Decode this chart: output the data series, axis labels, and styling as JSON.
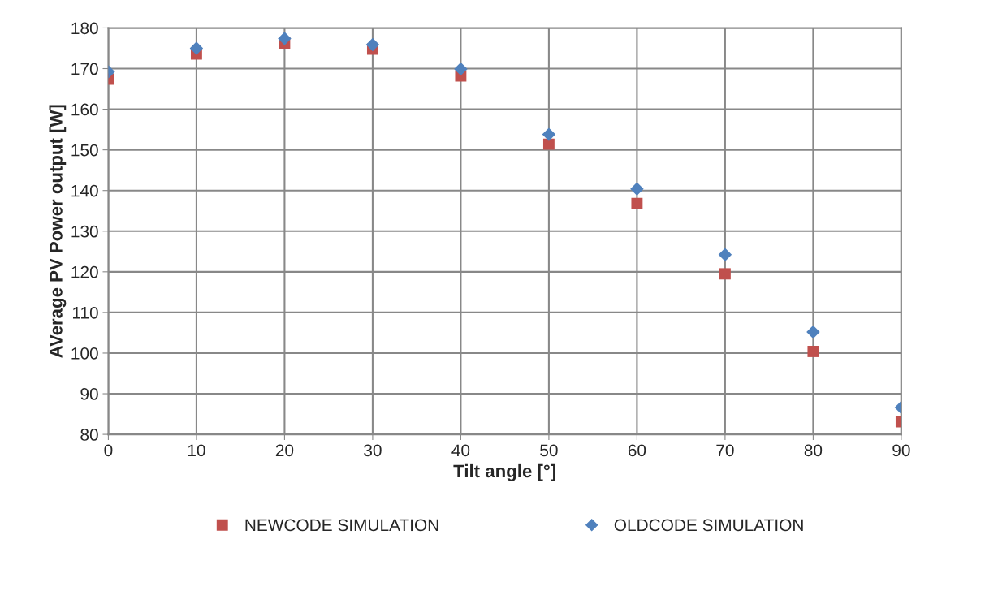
{
  "chart_data": {
    "type": "scatter",
    "xlabel": "Tilt angle [°]",
    "ylabel": "AVerage PV Power output [W]",
    "x": [
      0,
      10,
      20,
      30,
      40,
      50,
      60,
      70,
      80,
      90
    ],
    "series": [
      {
        "name": "NEWCODE SIMULATION",
        "color": "#c0504d",
        "marker": "square",
        "values": [
          167.4,
          173.6,
          176.3,
          174.8,
          168.2,
          151.4,
          136.8,
          119.5,
          100.4,
          83.1
        ]
      },
      {
        "name": "OLDCODE SIMULATION",
        "color": "#4f81bd",
        "marker": "diamond",
        "values": [
          169.2,
          175.0,
          177.4,
          175.9,
          169.9,
          153.8,
          140.4,
          124.2,
          105.2,
          86.6
        ]
      }
    ],
    "xlim": [
      0,
      90
    ],
    "xticks": [
      0,
      10,
      20,
      30,
      40,
      50,
      60,
      70,
      80,
      90
    ],
    "ylim": [
      80,
      180
    ],
    "yticks": [
      80,
      90,
      100,
      110,
      120,
      130,
      140,
      150,
      160,
      170,
      180
    ],
    "grid": true,
    "legend": "bottom"
  }
}
